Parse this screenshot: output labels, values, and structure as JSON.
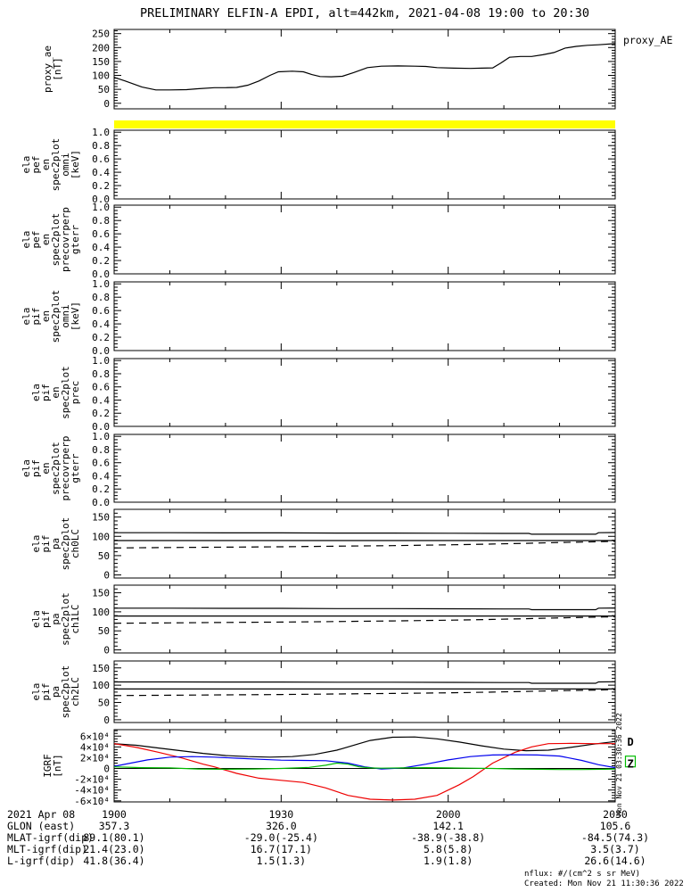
{
  "title": "PRELIMINARY ELFIN-A EPDI, alt=442km, 2021-04-08 19:00 to 20:30",
  "side_timestamp": "Mon Nov 21 03:30:36 2022",
  "footer": {
    "units_note": "nflux: #/(cm^2 s sr MeV)",
    "units_color": "#0000cc",
    "created": "Created: Mon Nov 21 11:30:36 2022"
  },
  "bottom_axis": {
    "date_label": "2021 Apr 08",
    "time_ticks": [
      "1900",
      "1930",
      "2000",
      "2030"
    ],
    "time_minutes": [
      0,
      30,
      60,
      90
    ],
    "rows": [
      {
        "label": "GLON (east)",
        "values": [
          "357.3",
          "326.0",
          "142.1",
          "105.6"
        ]
      },
      {
        "label": "MLAT-igrf(dip)",
        "values": [
          "89.1(80.1)",
          "-29.0(-25.4)",
          "-38.9(-38.8)",
          "-84.5(74.3)"
        ]
      },
      {
        "label": "MLT-igrf(dip)",
        "values": [
          "21.4(23.0)",
          "16.7(17.1)",
          "5.8(5.8)",
          "3.5(3.7)"
        ]
      },
      {
        "label": "L-igrf(dip)",
        "values": [
          "41.8(36.4)",
          "1.5(1.3)",
          "1.9(1.8)",
          "26.6(14.6)"
        ]
      }
    ]
  },
  "chart_data": [
    {
      "id": "proxy_ae",
      "type": "line",
      "label_lines": [
        "proxy_ae",
        "[nT]"
      ],
      "right_label": "proxy_AE",
      "ylim": [
        -20,
        265
      ],
      "minor_step": 10,
      "yticks": [
        {
          "v": 0,
          "label": "0"
        },
        {
          "v": 50,
          "label": "50"
        },
        {
          "v": 100,
          "label": "100"
        },
        {
          "v": 150,
          "label": "150"
        },
        {
          "v": 200,
          "label": "200"
        },
        {
          "v": 250,
          "label": "250"
        }
      ],
      "series": [
        {
          "name": "proxy_AE",
          "color": "#000000",
          "dash": "",
          "x": [
            0,
            2,
            5,
            7.5,
            10,
            13,
            15,
            18,
            20,
            22,
            24,
            26,
            28,
            29.5,
            32,
            34,
            35.5,
            37,
            39,
            41,
            43,
            45.5,
            48,
            51,
            54,
            56,
            58,
            61,
            64,
            66,
            68,
            69.5,
            71,
            73,
            75,
            77,
            79,
            81,
            83,
            85,
            87,
            90
          ],
          "y": [
            93,
            80,
            58,
            48,
            48,
            49,
            52,
            56,
            56,
            57,
            65,
            80,
            100,
            113,
            115,
            113,
            103,
            96,
            95,
            97,
            110,
            128,
            133,
            134,
            133,
            132,
            128,
            126,
            125,
            126,
            127,
            145,
            165,
            168,
            168,
            174,
            182,
            198,
            204,
            208,
            210,
            214
          ]
        }
      ]
    },
    {
      "id": "ela_pef_en_spec2plot_omni",
      "type": "spectrogram-empty",
      "label_lines": [
        "ela",
        "pef",
        "en",
        "spec2plot",
        "omni",
        "[keV]"
      ],
      "ylim": [
        0,
        1.03
      ],
      "minor_step": 0.05,
      "top_bar_color": "#ffff00",
      "yticks": [
        {
          "v": 0,
          "label": "0.0"
        },
        {
          "v": 0.2,
          "label": "0.2"
        },
        {
          "v": 0.4,
          "label": "0.4"
        },
        {
          "v": 0.6,
          "label": "0.6"
        },
        {
          "v": 0.8,
          "label": "0.8"
        },
        {
          "v": 1,
          "label": "1.0"
        }
      ],
      "series": []
    },
    {
      "id": "ela_pef_en_spec2plot_precovrperp_gterr",
      "type": "spectrogram-empty",
      "label_lines": [
        "ela",
        "pef",
        "en",
        "spec2plot",
        "precovrperp",
        "gterr"
      ],
      "ylim": [
        0,
        1.03
      ],
      "minor_step": 0.05,
      "yticks": [
        {
          "v": 0,
          "label": "0.0"
        },
        {
          "v": 0.2,
          "label": "0.2"
        },
        {
          "v": 0.4,
          "label": "0.4"
        },
        {
          "v": 0.6,
          "label": "0.6"
        },
        {
          "v": 0.8,
          "label": "0.8"
        },
        {
          "v": 1,
          "label": "1.0"
        }
      ],
      "series": []
    },
    {
      "id": "ela_pif_en_spec2plot_omni",
      "type": "spectrogram-empty",
      "label_lines": [
        "ela",
        "pif",
        "en",
        "spec2plot",
        "omni",
        "[keV]"
      ],
      "ylim": [
        0,
        1.03
      ],
      "minor_step": 0.05,
      "yticks": [
        {
          "v": 0,
          "label": "0.0"
        },
        {
          "v": 0.2,
          "label": "0.2"
        },
        {
          "v": 0.4,
          "label": "0.4"
        },
        {
          "v": 0.6,
          "label": "0.6"
        },
        {
          "v": 0.8,
          "label": "0.8"
        },
        {
          "v": 1,
          "label": "1.0"
        }
      ],
      "series": []
    },
    {
      "id": "ela_pif_en_spec2plot_prec",
      "type": "spectrogram-empty",
      "label_lines": [
        "ela",
        "pif",
        "en",
        "spec2plot",
        "prec"
      ],
      "ylim": [
        0,
        1.03
      ],
      "minor_step": 0.05,
      "yticks": [
        {
          "v": 0,
          "label": "0.0"
        },
        {
          "v": 0.2,
          "label": "0.2"
        },
        {
          "v": 0.4,
          "label": "0.4"
        },
        {
          "v": 0.6,
          "label": "0.6"
        },
        {
          "v": 0.8,
          "label": "0.8"
        },
        {
          "v": 1,
          "label": "1.0"
        }
      ],
      "series": []
    },
    {
      "id": "ela_pif_en_spec2plot_precovrperp_gterr",
      "type": "spectrogram-empty",
      "label_lines": [
        "ela",
        "pif",
        "en",
        "spec2plot",
        "precovrperp",
        "gterr"
      ],
      "ylim": [
        0,
        1.03
      ],
      "minor_step": 0.05,
      "yticks": [
        {
          "v": 0,
          "label": "0.0"
        },
        {
          "v": 0.2,
          "label": "0.2"
        },
        {
          "v": 0.4,
          "label": "0.4"
        },
        {
          "v": 0.6,
          "label": "0.6"
        },
        {
          "v": 0.8,
          "label": "0.8"
        },
        {
          "v": 1,
          "label": "1.0"
        }
      ],
      "series": []
    },
    {
      "id": "ela_pif_pa_spec2plot_ch0LC",
      "type": "line",
      "label_lines": [
        "ela",
        "pif",
        "pa",
        "spec2plot",
        "ch0LC"
      ],
      "ylim": [
        -8,
        170
      ],
      "minor_step": 10,
      "yticks": [
        {
          "v": 0,
          "label": "0"
        },
        {
          "v": 50,
          "label": "50"
        },
        {
          "v": 100,
          "label": "100"
        },
        {
          "v": 150,
          "label": "150"
        }
      ],
      "series": [
        {
          "name": "upper_solid",
          "color": "#000000",
          "dash": "",
          "x": [
            0,
            10,
            20,
            30,
            40,
            50,
            60,
            70,
            74.5,
            75,
            86.5,
            87,
            90
          ],
          "y": [
            109.5,
            109.5,
            109,
            109,
            108.5,
            108.5,
            108,
            107.5,
            107.5,
            105.5,
            105.5,
            109.5,
            110
          ]
        },
        {
          "name": "middle_solid",
          "color": "#000000",
          "dash": "",
          "x": [
            0,
            90
          ],
          "y": [
            89,
            89
          ]
        },
        {
          "name": "lower_dashed",
          "color": "#000000",
          "dash": "8 6",
          "x": [
            0,
            10,
            20,
            30,
            40,
            50,
            60,
            68,
            74,
            80,
            85,
            88,
            90
          ],
          "y": [
            70,
            71,
            72,
            73,
            74.5,
            76,
            78,
            80,
            82,
            84,
            85.5,
            86.5,
            87
          ]
        }
      ]
    },
    {
      "id": "ela_pif_pa_spec2plot_ch1LC",
      "type": "line",
      "label_lines": [
        "ela",
        "pif",
        "pa",
        "spec2plot",
        "ch1LC"
      ],
      "ylim": [
        -8,
        170
      ],
      "minor_step": 10,
      "yticks": [
        {
          "v": 0,
          "label": "0"
        },
        {
          "v": 50,
          "label": "50"
        },
        {
          "v": 100,
          "label": "100"
        },
        {
          "v": 150,
          "label": "150"
        }
      ],
      "series": [
        {
          "name": "upper_solid",
          "color": "#000000",
          "dash": "",
          "x": [
            0,
            10,
            20,
            30,
            40,
            50,
            60,
            70,
            74.5,
            75,
            86.5,
            87,
            90
          ],
          "y": [
            109.5,
            109.5,
            109,
            109,
            108.5,
            108.5,
            108,
            107.5,
            107.5,
            105.5,
            105.5,
            109.5,
            110
          ]
        },
        {
          "name": "middle_solid",
          "color": "#000000",
          "dash": "",
          "x": [
            0,
            90
          ],
          "y": [
            89,
            89
          ]
        },
        {
          "name": "lower_dashed",
          "color": "#000000",
          "dash": "8 6",
          "x": [
            0,
            10,
            20,
            30,
            40,
            50,
            60,
            68,
            74,
            80,
            85,
            88,
            90
          ],
          "y": [
            70,
            71,
            72,
            73,
            74.5,
            76,
            78,
            80,
            82,
            84,
            85.5,
            86.5,
            87
          ]
        }
      ]
    },
    {
      "id": "ela_pif_pa_spec2plot_ch2LC",
      "type": "line",
      "label_lines": [
        "ela",
        "pif",
        "pa",
        "spec2plot",
        "ch2LC"
      ],
      "ylim": [
        -8,
        170
      ],
      "minor_step": 10,
      "yticks": [
        {
          "v": 0,
          "label": "0"
        },
        {
          "v": 50,
          "label": "50"
        },
        {
          "v": 100,
          "label": "100"
        },
        {
          "v": 150,
          "label": "150"
        }
      ],
      "series": [
        {
          "name": "upper_solid",
          "color": "#000000",
          "dash": "",
          "x": [
            0,
            10,
            20,
            30,
            40,
            50,
            60,
            70,
            74.5,
            75,
            86.5,
            87,
            90
          ],
          "y": [
            109.5,
            109.5,
            109,
            109,
            108.5,
            108.5,
            108,
            107.5,
            107.5,
            105.5,
            105.5,
            109.5,
            110
          ]
        },
        {
          "name": "middle_solid",
          "color": "#000000",
          "dash": "",
          "x": [
            0,
            90
          ],
          "y": [
            89,
            89
          ]
        },
        {
          "name": "lower_dashed",
          "color": "#000000",
          "dash": "8 6",
          "x": [
            0,
            10,
            20,
            30,
            40,
            50,
            60,
            68,
            74,
            80,
            85,
            88,
            90
          ],
          "y": [
            70,
            71,
            72,
            73,
            74.5,
            76,
            78,
            80,
            82,
            84,
            85.5,
            86.5,
            87
          ]
        }
      ]
    },
    {
      "id": "IGRF",
      "type": "line",
      "label_lines": [
        "IGRF",
        "[nT]"
      ],
      "units_scale": "10^4 nT",
      "ylim": [
        -6.2,
        7.2
      ],
      "minor_step": 0.5,
      "zero_line": true,
      "yticks": [
        {
          "v": 6,
          "label": "6×10⁴"
        },
        {
          "v": 4,
          "label": "4×10⁴"
        },
        {
          "v": 2,
          "label": "2×10⁴"
        },
        {
          "v": 0,
          "label": "0"
        },
        {
          "v": -2,
          "label": "-2×10⁴"
        },
        {
          "v": -4,
          "label": "-4×10⁴"
        },
        {
          "v": -6,
          "label": "-6×10⁴"
        }
      ],
      "series": [
        {
          "name": "black",
          "color": "#000000",
          "dash": "",
          "x": [
            0,
            4,
            8,
            12,
            16,
            20,
            24,
            28,
            32,
            36,
            40,
            44,
            46,
            50,
            54,
            58,
            62,
            66,
            70,
            74,
            78,
            82,
            86,
            90
          ],
          "y": [
            4.6,
            4.3,
            3.8,
            3.3,
            2.8,
            2.4,
            2.2,
            2.1,
            2.2,
            2.6,
            3.4,
            4.6,
            5.2,
            5.8,
            5.85,
            5.5,
            4.9,
            4.2,
            3.6,
            3.3,
            3.4,
            3.9,
            4.5,
            5.0
          ]
        },
        {
          "name": "red",
          "color": "#ee0000",
          "dash": "",
          "x": [
            0,
            4,
            8,
            12,
            16,
            18,
            22,
            26,
            30,
            34,
            38,
            42,
            46,
            50,
            54,
            58,
            62,
            64.5,
            68,
            72,
            75,
            78,
            82,
            86,
            90
          ],
          "y": [
            4.6,
            3.9,
            3.0,
            2.0,
            0.8,
            0.3,
            -0.9,
            -1.8,
            -2.2,
            -2.6,
            -3.6,
            -5.0,
            -5.7,
            -5.85,
            -5.7,
            -5.0,
            -3.0,
            -1.5,
            1.0,
            3.0,
            4.0,
            4.6,
            4.65,
            4.6,
            4.6
          ]
        },
        {
          "name": "blue",
          "color": "#0000ee",
          "dash": "",
          "x": [
            0,
            3,
            6,
            10,
            14,
            18,
            22,
            26,
            30,
            34,
            38,
            42,
            45,
            48,
            52,
            56,
            60,
            64,
            68,
            72,
            76,
            80,
            84,
            87,
            90
          ],
          "y": [
            0.4,
            1.0,
            1.6,
            2.1,
            2.2,
            2.1,
            1.9,
            1.7,
            1.55,
            1.5,
            1.45,
            1.0,
            0.3,
            -0.1,
            0.1,
            0.8,
            1.6,
            2.2,
            2.5,
            2.55,
            2.5,
            2.3,
            1.5,
            0.7,
            0.15
          ]
        },
        {
          "name": "green",
          "color": "#00bb00",
          "dash": "",
          "x": [
            0,
            5,
            10,
            15,
            20,
            25,
            30,
            35,
            38,
            40,
            42,
            44,
            46,
            48,
            52,
            56,
            60,
            64,
            68,
            72,
            76,
            80,
            84,
            88,
            90
          ],
          "y": [
            0.3,
            0.15,
            0.1,
            -0.1,
            -0.15,
            -0.1,
            0.0,
            0.2,
            0.6,
            1.0,
            0.8,
            0.3,
            0.1,
            0.05,
            0.1,
            0.15,
            0.1,
            0.05,
            0.0,
            -0.1,
            -0.15,
            -0.2,
            -0.2,
            -0.15,
            -0.1
          ]
        }
      ],
      "markers": [
        {
          "text": "D",
          "color": "#ee0000",
          "x": 92,
          "v": 4.9
        },
        {
          "text": "Z",
          "color": "#0000ee",
          "box_color": "#00bb00",
          "x": 92,
          "v": 0.8
        }
      ]
    }
  ]
}
